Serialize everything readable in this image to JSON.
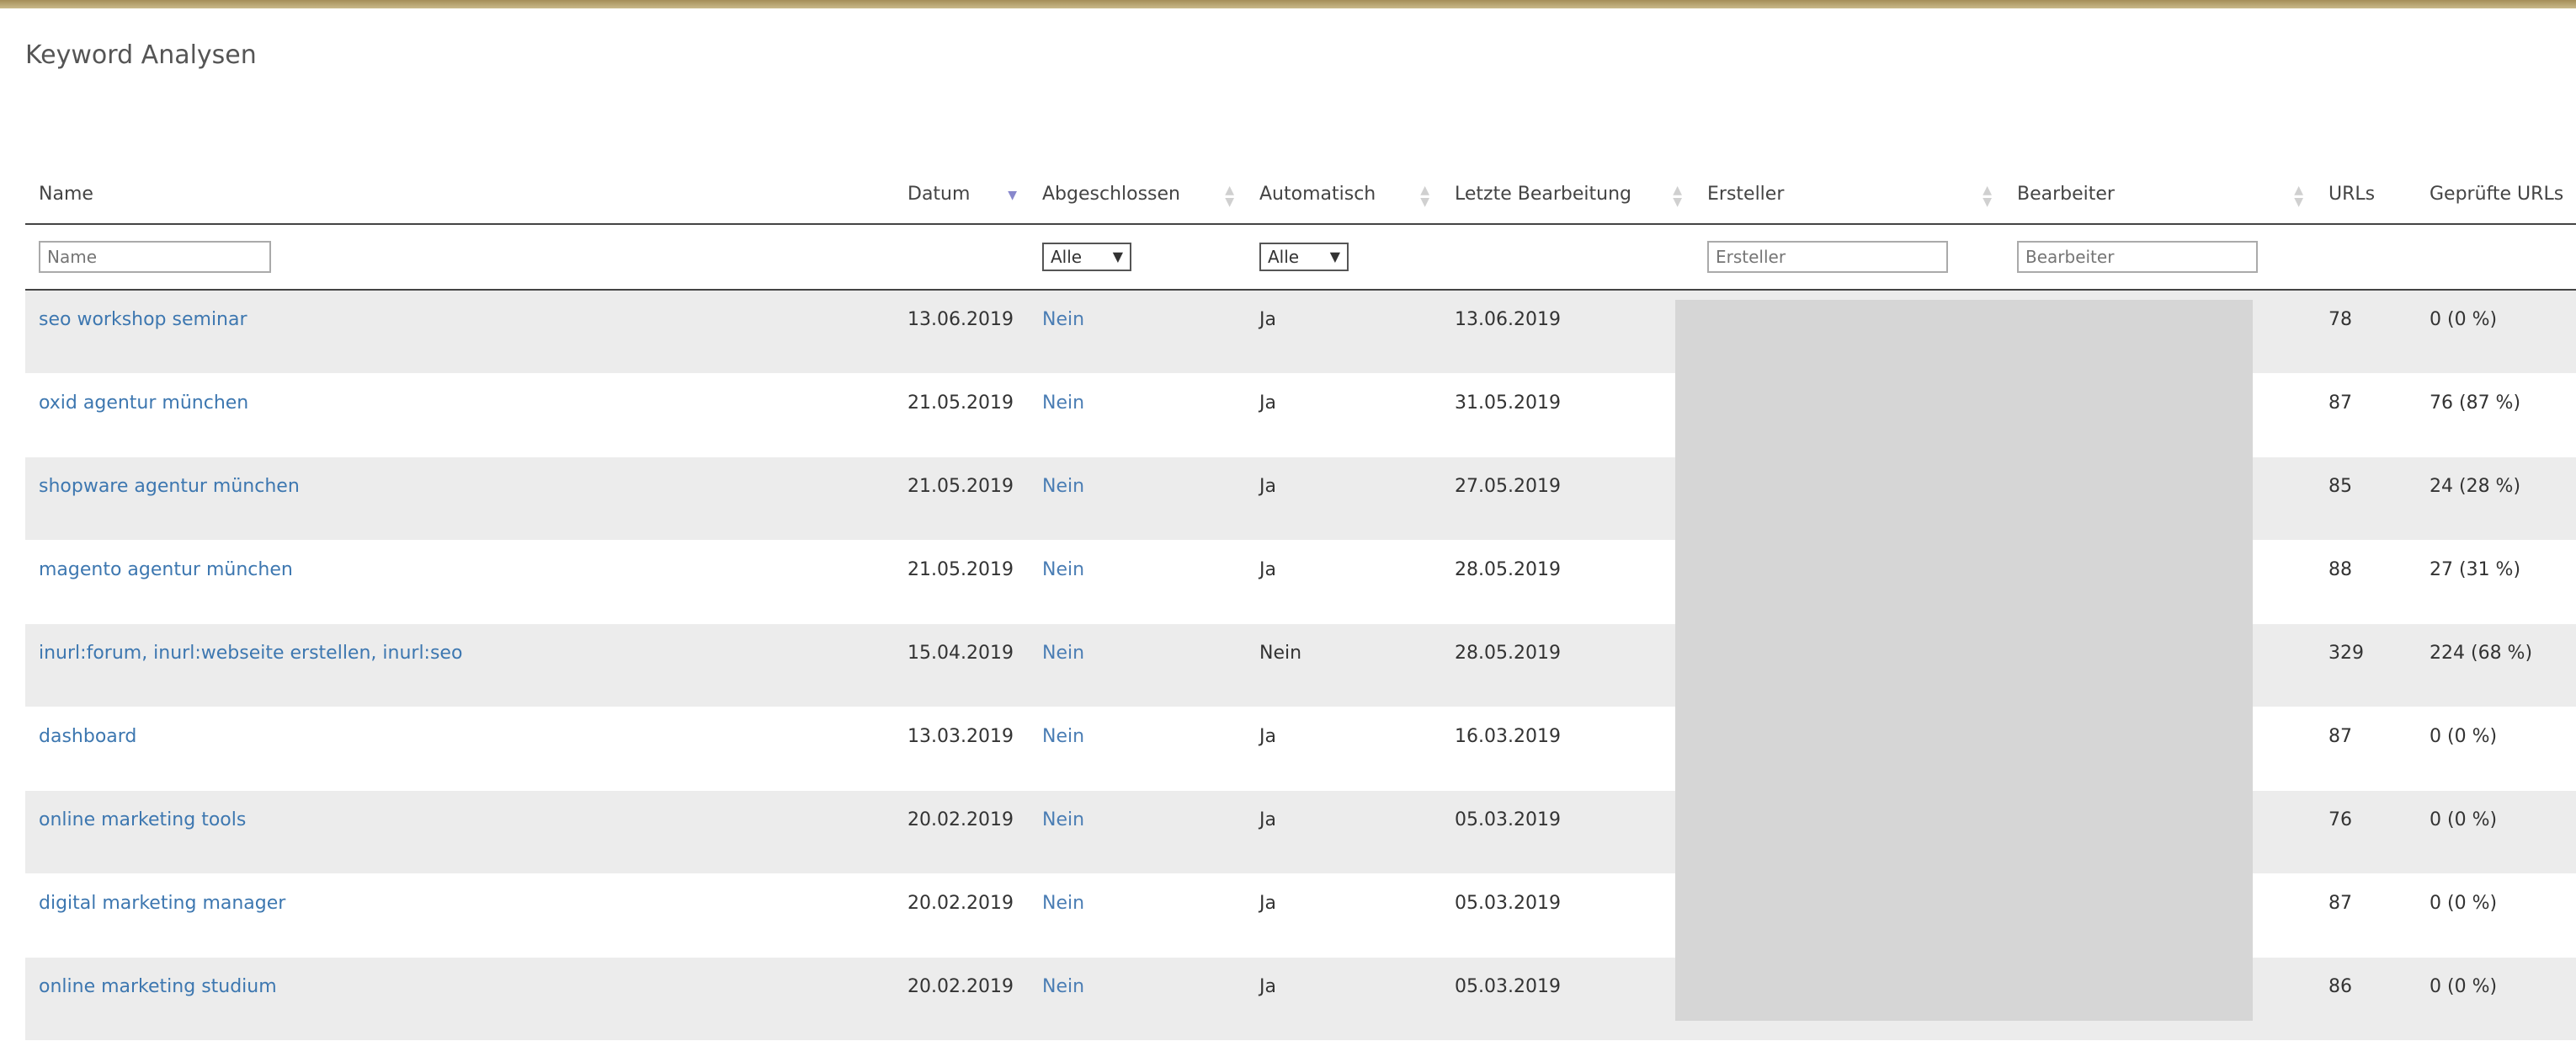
{
  "page": {
    "title": "Keyword Analysen"
  },
  "table": {
    "headers": {
      "name": "Name",
      "datum": "Datum",
      "abgeschlossen": "Abgeschlossen",
      "automatisch": "Automatisch",
      "letzte_bearbeitung": "Letzte Bearbeitung",
      "ersteller": "Ersteller",
      "bearbeiter": "Bearbeiter",
      "urls": "URLs",
      "gepruefte_urls": "Geprüfte URLs"
    },
    "filters": {
      "name_placeholder": "Name",
      "abgeschlossen_selected": "Alle",
      "automatisch_selected": "Alle",
      "ersteller_placeholder": "Ersteller",
      "bearbeiter_placeholder": "Bearbeiter"
    },
    "sort_icons": {
      "active": "sort-desc-icon",
      "inactive": "sort-both-icon"
    },
    "rows": [
      {
        "name": "seo workshop seminar",
        "datum": "13.06.2019",
        "abgeschlossen": "Nein",
        "automatisch": "Ja",
        "letzte": "13.06.2019",
        "urls": "78",
        "gepruefte": "0 (0 %)"
      },
      {
        "name": "oxid agentur münchen",
        "datum": "21.05.2019",
        "abgeschlossen": "Nein",
        "automatisch": "Ja",
        "letzte": "31.05.2019",
        "urls": "87",
        "gepruefte": "76 (87 %)"
      },
      {
        "name": "shopware agentur münchen",
        "datum": "21.05.2019",
        "abgeschlossen": "Nein",
        "automatisch": "Ja",
        "letzte": "27.05.2019",
        "urls": "85",
        "gepruefte": "24 (28 %)"
      },
      {
        "name": "magento agentur münchen",
        "datum": "21.05.2019",
        "abgeschlossen": "Nein",
        "automatisch": "Ja",
        "letzte": "28.05.2019",
        "urls": "88",
        "gepruefte": "27 (31 %)"
      },
      {
        "name": "inurl:forum, inurl:webseite erstellen, inurl:seo",
        "datum": "15.04.2019",
        "abgeschlossen": "Nein",
        "automatisch": "Nein",
        "letzte": "28.05.2019",
        "urls": "329",
        "gepruefte": "224 (68 %)"
      },
      {
        "name": "dashboard",
        "datum": "13.03.2019",
        "abgeschlossen": "Nein",
        "automatisch": "Ja",
        "letzte": "16.03.2019",
        "urls": "87",
        "gepruefte": "0 (0 %)"
      },
      {
        "name": "online marketing tools",
        "datum": "20.02.2019",
        "abgeschlossen": "Nein",
        "automatisch": "Ja",
        "letzte": "05.03.2019",
        "urls": "76",
        "gepruefte": "0 (0 %)"
      },
      {
        "name": "digital marketing manager",
        "datum": "20.02.2019",
        "abgeschlossen": "Nein",
        "automatisch": "Ja",
        "letzte": "05.03.2019",
        "urls": "87",
        "gepruefte": "0 (0 %)"
      },
      {
        "name": "online marketing studium",
        "datum": "20.02.2019",
        "abgeschlossen": "Nein",
        "automatisch": "Ja",
        "letzte": "05.03.2019",
        "urls": "86",
        "gepruefte": "0 (0 %)"
      }
    ]
  },
  "colors": {
    "accent_bar": "#b09a62",
    "link": "#3d77b0",
    "row_stripe": "#ececec",
    "redaction": "#d6d6d6"
  }
}
